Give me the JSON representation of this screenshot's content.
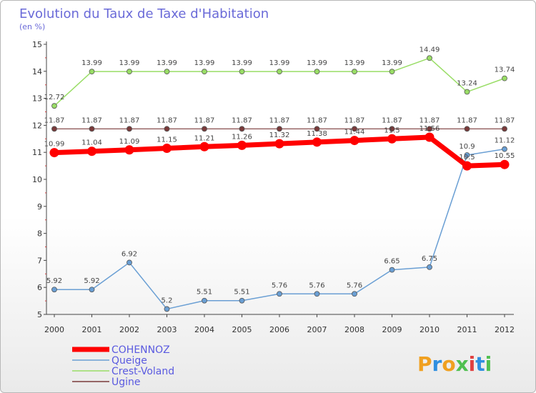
{
  "chart_data": {
    "type": "line",
    "title": "Evolution du Taux de Taxe d'Habitation",
    "subtitle": "(en %)",
    "x": [
      "2000",
      "2001",
      "2002",
      "2003",
      "2004",
      "2005",
      "2006",
      "2007",
      "2008",
      "2009",
      "2010",
      "2011",
      "2012"
    ],
    "ylim": [
      5,
      15
    ],
    "yticks": [
      "5",
      "6",
      "7",
      "8",
      "9",
      "10",
      "11",
      "12",
      "13",
      "14",
      "15"
    ],
    "grid": false,
    "legend_position": "bottom-left",
    "series": [
      {
        "name": "COHENNOZ",
        "color": "#ff0000",
        "values": [
          10.99,
          11.04,
          11.09,
          11.15,
          11.21,
          11.26,
          11.32,
          11.38,
          11.44,
          11.5,
          11.56,
          10.5,
          10.55
        ],
        "labels": [
          "10.99",
          "11.04",
          "11.09",
          "11.15",
          "11.21",
          "11.26",
          "11.32",
          "11.38",
          "11.44",
          "11.5",
          "11.56",
          "10.5",
          "10.55"
        ]
      },
      {
        "name": "Queige",
        "color": "#6a9fd4",
        "values": [
          5.92,
          5.92,
          6.92,
          5.2,
          5.51,
          5.51,
          5.76,
          5.76,
          5.76,
          6.65,
          6.75,
          10.9,
          11.12
        ],
        "labels": [
          "5.92",
          "5.92",
          "6.92",
          "5.2",
          "5.51",
          "5.51",
          "5.76",
          "5.76",
          "5.76",
          "6.65",
          "6.75",
          "10.9",
          "11.12"
        ]
      },
      {
        "name": "Crest-Voland",
        "color": "#99dd66",
        "values": [
          12.72,
          13.99,
          13.99,
          13.99,
          13.99,
          13.99,
          13.99,
          13.99,
          13.99,
          13.99,
          14.49,
          13.24,
          13.74
        ],
        "labels": [
          "12.72",
          "13.99",
          "13.99",
          "13.99",
          "13.99",
          "13.99",
          "13.99",
          "13.99",
          "13.99",
          "13.99",
          "14.49",
          "13.24",
          "13.74"
        ]
      },
      {
        "name": "Ugine",
        "color": "#7a3a3a",
        "values": [
          11.87,
          11.87,
          11.87,
          11.87,
          11.87,
          11.87,
          11.87,
          11.87,
          11.87,
          11.87,
          11.87,
          11.87,
          11.87
        ],
        "labels": [
          "11.87",
          "11.87",
          "11.87",
          "11.87",
          "11.87",
          "11.87",
          "11.87",
          "11.87",
          "11.87",
          "11.87",
          "11.87",
          "11.87",
          "11.87"
        ]
      }
    ]
  },
  "brand": {
    "letters": [
      "P",
      "r",
      "o",
      "x",
      "i",
      "t",
      "i"
    ],
    "colors": [
      "#f0a020",
      "#2f8fe0",
      "#f0a020",
      "#50c050",
      "#e04040",
      "#2f8fe0",
      "#50c050"
    ]
  }
}
